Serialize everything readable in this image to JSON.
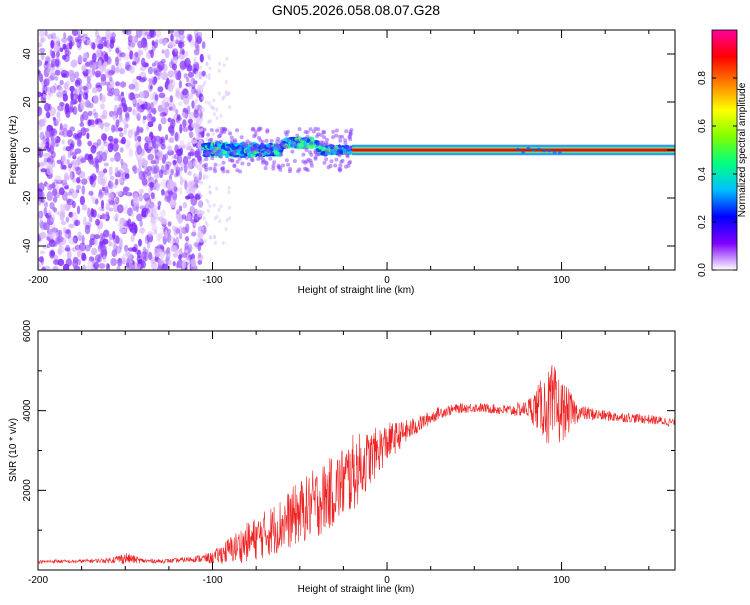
{
  "figure": {
    "title": "GN05.2026.058.08.07.G28"
  },
  "chart_data": [
    {
      "type": "heatmap",
      "xlabel": "Height of straight line (km)",
      "ylabel": "Frequency (Hz)",
      "xlim": [
        -200,
        165
      ],
      "ylim": [
        -50,
        50
      ],
      "xticks": [
        -200,
        -100,
        0,
        100
      ],
      "xtick_labels": [
        "-200",
        "-100",
        "0",
        "100"
      ],
      "yticks": [
        -40,
        -20,
        0,
        20,
        40
      ],
      "ytick_labels": [
        "-40",
        "-20",
        "0",
        "20",
        "40"
      ],
      "colorbar": {
        "label": "Normalized spectral amplitude",
        "range": [
          0.0,
          1.0
        ],
        "ticks": [
          0.0,
          0.2,
          0.4,
          0.6,
          0.8
        ],
        "tick_labels": [
          "0.0",
          "0.2",
          "0.4",
          "0.6",
          "0.8"
        ],
        "colormap": [
          "#ffffff",
          "#8000ff",
          "#0000ff",
          "#00c0ff",
          "#00ff80",
          "#80ff00",
          "#ffff00",
          "#ff8000",
          "#ff0000",
          "#ff00a0"
        ]
      },
      "regions": [
        {
          "x": [
            -200,
            -105
          ],
          "frequency": [
            -50,
            50
          ],
          "amplitude": "low, broadband scatter",
          "colors": [
            "#d9b8ff",
            "#9a55ff",
            "#7a1fff"
          ]
        },
        {
          "x": [
            -105,
            -20
          ],
          "frequency": [
            -5,
            8
          ],
          "amplitude": "0.3-0.6",
          "colors": [
            "#0030ff",
            "#00c8ff",
            "#40ff80"
          ]
        },
        {
          "x": [
            -20,
            165
          ],
          "frequency": [
            -1,
            1
          ],
          "amplitude": "0.8-1.0 narrow line at 0 Hz",
          "colors": [
            "#ff0000",
            "#ff6000"
          ]
        }
      ],
      "grid": false,
      "legend": "colorbar right"
    },
    {
      "type": "line",
      "xlabel": "Height of straight line (km)",
      "ylabel": "SNR (10 * v/v)",
      "xlim": [
        -200,
        165
      ],
      "ylim": [
        0,
        6000
      ],
      "xticks": [
        -200,
        -100,
        0,
        100
      ],
      "xtick_labels": [
        "-200",
        "-100",
        "0",
        "100"
      ],
      "yticks": [
        2000,
        4000,
        6000
      ],
      "ytick_labels": [
        "2000",
        "4000",
        "6000"
      ],
      "color": "#ee2222",
      "series": [
        {
          "x": [
            -200,
            -190,
            -180,
            -170,
            -160,
            -150,
            -140,
            -130,
            -120,
            -110,
            -100,
            -90,
            -80,
            -70,
            -60,
            -50,
            -40,
            -30,
            -20,
            -10,
            0,
            10,
            20,
            30,
            40,
            50,
            60,
            70,
            80,
            90,
            95,
            100,
            110,
            120,
            130,
            140,
            150,
            165
          ],
          "y": [
            200,
            220,
            210,
            230,
            240,
            300,
            230,
            220,
            240,
            280,
            300,
            500,
            700,
            900,
            1150,
            1450,
            1700,
            2000,
            2400,
            2800,
            3200,
            3450,
            3700,
            3950,
            4050,
            4080,
            4050,
            4000,
            4050,
            4100,
            4000,
            4000,
            3950,
            3900,
            3850,
            3820,
            3780,
            3700
          ],
          "spread": [
            40,
            50,
            40,
            50,
            60,
            150,
            60,
            50,
            60,
            80,
            150,
            350,
            500,
            600,
            700,
            800,
            900,
            900,
            1000,
            700,
            500,
            300,
            200,
            150,
            120,
            120,
            120,
            150,
            200,
            800,
            1200,
            800,
            200,
            150,
            130,
            120,
            120,
            110
          ]
        }
      ],
      "grid": false
    }
  ]
}
